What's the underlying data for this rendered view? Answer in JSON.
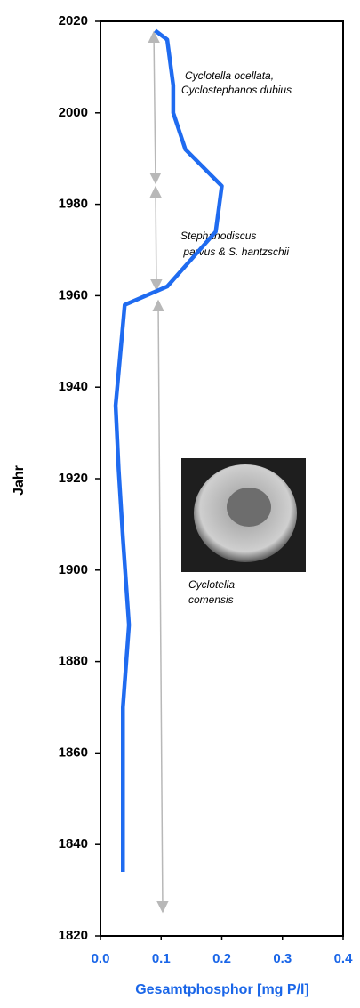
{
  "chart_data": {
    "type": "line",
    "y_label": "Jahr",
    "x_label": "Gesamtphosphor [mg P/l]",
    "years": [
      2018,
      2016,
      2006,
      2000,
      1992,
      1984,
      1974,
      1962,
      1958,
      1936,
      1922,
      1907,
      1888,
      1870,
      1834
    ],
    "series": [
      {
        "color": "#1f6bf0",
        "values": [
          0.09,
          0.11,
          0.12,
          0.12,
          0.14,
          0.2,
          0.19,
          0.11,
          0.04,
          0.025,
          0.03,
          0.037,
          0.047,
          0.037,
          0.037
        ]
      }
    ],
    "xlim": [
      0,
      0.4
    ],
    "xticks": [
      {
        "value": 0,
        "label": "0.0"
      },
      0.1,
      0.2,
      0.3,
      0.4
    ],
    "ylim": [
      1820,
      2020
    ],
    "yticks": [
      1820,
      1840,
      1860,
      1880,
      1900,
      1920,
      1940,
      1960,
      1980,
      2000,
      2020
    ],
    "annotations": [
      "Cyclotella ocellata,",
      "Cyclostephanos dubius",
      "Stephanodiscus",
      " parvus & S. hantzschii",
      "Cyclotella",
      "comensis"
    ]
  }
}
